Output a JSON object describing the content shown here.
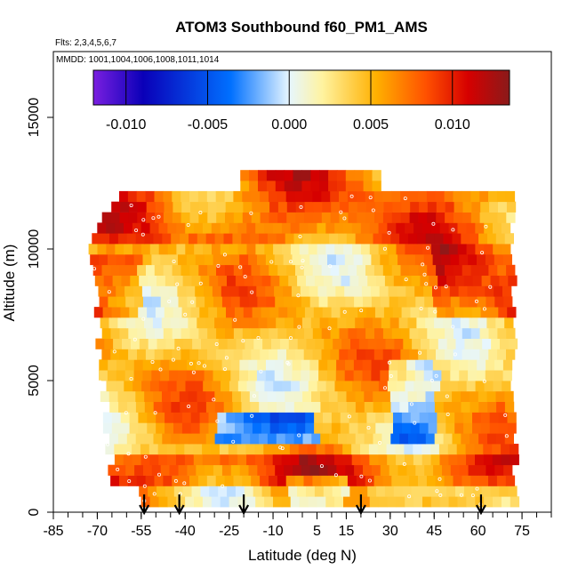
{
  "chart_data": {
    "type": "heatmap",
    "title": "ATOM3 Southbound f60_PM1_AMS",
    "subtitle_flights": "Flts: 2,3,4,5,6,7",
    "subtitle_dates": "MMDD: 1001,1004,1006,1008,1011,1014",
    "xlabel": "Latitude (deg N)",
    "ylabel": "Altitude (m)",
    "xlim": [
      -85,
      85
    ],
    "ylim": [
      0,
      17500
    ],
    "x_ticks": [
      -85,
      -70,
      -55,
      -40,
      -25,
      -10,
      5,
      15,
      30,
      45,
      60,
      75
    ],
    "x_tick_labels": [
      "-85",
      "-70",
      "-55",
      "-40",
      "-25",
      "-10",
      "5",
      "15",
      "30",
      "45",
      "60",
      "75"
    ],
    "y_ticks": [
      0,
      5000,
      10000,
      15000
    ],
    "y_tick_labels": [
      "0",
      "5000",
      "10000",
      "15000"
    ],
    "colorbar": {
      "range": [
        -0.012,
        0.0135
      ],
      "ticks": [
        -0.01,
        -0.005,
        0.0,
        0.005,
        0.01
      ],
      "tick_labels": [
        "-0.010",
        "-0.005",
        "0.000",
        "0.005",
        "0.010"
      ],
      "colors": [
        "#7a1fe0",
        "#0a00b8",
        "#0070ff",
        "#e6f6ff",
        "#fff3a0",
        "#ffb000",
        "#ff5000",
        "#d60000",
        "#8a1a1a"
      ]
    },
    "profile_arrows_lat": [
      -54,
      -42,
      -20,
      20,
      61
    ],
    "grid": false,
    "legend": "none"
  }
}
